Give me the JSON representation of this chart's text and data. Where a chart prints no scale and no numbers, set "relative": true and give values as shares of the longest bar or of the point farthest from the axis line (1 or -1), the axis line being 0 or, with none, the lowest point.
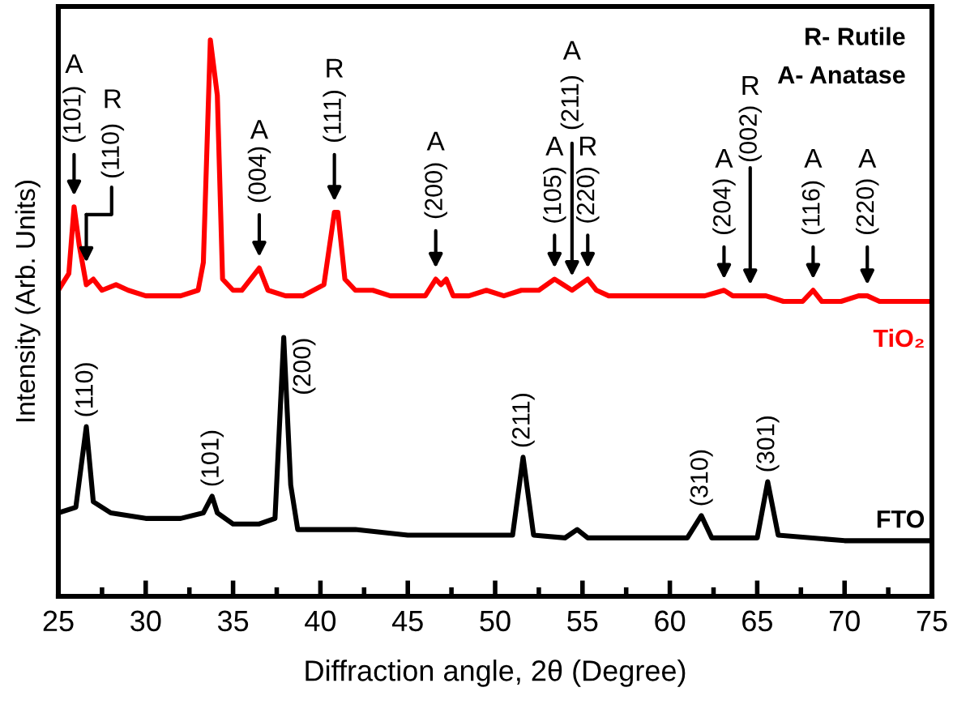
{
  "chart_data": {
    "type": "line",
    "relative": true,
    "xlabel": "Diffraction angle, 2θ (Degree)",
    "ylabel": "Intensity (Arb. Units)",
    "xlim": [
      25,
      75
    ],
    "xticks": [
      25,
      30,
      35,
      40,
      45,
      50,
      55,
      60,
      65,
      70,
      75
    ],
    "tick_labels": "x",
    "line_style": "solid",
    "series": [
      {
        "name": "TiO₂",
        "color": "#ff0000",
        "x": [
          25.0,
          25.6,
          25.9,
          26.2,
          26.6,
          27.0,
          27.5,
          28.3,
          29,
          30,
          31,
          32,
          33.0,
          33.3,
          33.7,
          34.1,
          34.4,
          35,
          35.5,
          36.0,
          36.5,
          37.0,
          38,
          39,
          40.2,
          40.8,
          41.0,
          41.4,
          42,
          43,
          44,
          45,
          46,
          46.6,
          46.9,
          47.2,
          47.6,
          48.5,
          49.5,
          50.5,
          51.5,
          52.5,
          53.4,
          53.9,
          54.4,
          55.3,
          55.8,
          56.5,
          57,
          58,
          59,
          60,
          61,
          62,
          63.1,
          63.6,
          64.6,
          65.5,
          66.5,
          67.6,
          68.2,
          68.7,
          69.8,
          70.8,
          71.3,
          72,
          73,
          74,
          75
        ],
        "values": [
          0.55,
          0.58,
          0.7,
          0.63,
          0.56,
          0.57,
          0.55,
          0.56,
          0.55,
          0.54,
          0.54,
          0.54,
          0.55,
          0.6,
          1.0,
          0.9,
          0.57,
          0.55,
          0.55,
          0.57,
          0.59,
          0.55,
          0.54,
          0.54,
          0.56,
          0.69,
          0.69,
          0.57,
          0.55,
          0.55,
          0.54,
          0.54,
          0.54,
          0.57,
          0.56,
          0.57,
          0.54,
          0.54,
          0.55,
          0.54,
          0.55,
          0.55,
          0.57,
          0.56,
          0.55,
          0.57,
          0.55,
          0.54,
          0.54,
          0.54,
          0.54,
          0.54,
          0.54,
          0.54,
          0.55,
          0.54,
          0.54,
          0.54,
          0.53,
          0.53,
          0.55,
          0.53,
          0.53,
          0.54,
          0.54,
          0.53,
          0.53,
          0.53,
          0.53
        ]
      },
      {
        "name": "FTO",
        "color": "#000000",
        "x": [
          25.0,
          26.0,
          26.6,
          27.0,
          28,
          30,
          32,
          33.3,
          33.8,
          34.1,
          35,
          36.5,
          37.4,
          37.9,
          38.3,
          38.7,
          40,
          42,
          45,
          48,
          50,
          51.0,
          51.6,
          52.2,
          54.0,
          54.7,
          55.3,
          58,
          61.0,
          61.8,
          62.4,
          65.0,
          65.6,
          66.2,
          70,
          75
        ],
        "values": [
          0.15,
          0.16,
          0.305,
          0.17,
          0.15,
          0.14,
          0.14,
          0.15,
          0.18,
          0.15,
          0.13,
          0.13,
          0.14,
          0.465,
          0.2,
          0.12,
          0.12,
          0.12,
          0.11,
          0.11,
          0.11,
          0.11,
          0.25,
          0.11,
          0.105,
          0.12,
          0.105,
          0.105,
          0.105,
          0.145,
          0.105,
          0.105,
          0.206,
          0.11,
          0.1,
          0.1
        ]
      }
    ],
    "annotations": [
      "R- Rutile",
      "A- Anatase",
      "A",
      {
        "text": "(101)",
        "x": 25.9,
        "y": 0.7
      },
      "R",
      "(110)",
      "A",
      {
        "text": "(004)",
        "x": 36.5,
        "y": 0.59
      },
      "R",
      {
        "text": "(111)",
        "x": 40.8,
        "y": 0.69
      },
      "A",
      {
        "text": "(200)",
        "x": 46.6,
        "y": 0.57
      },
      "A",
      {
        "text": "(105)",
        "x": 53.4,
        "y": 0.57
      },
      "A",
      "(211)",
      "R",
      {
        "text": "(220)",
        "x": 55.3,
        "y": 0.57
      },
      "A",
      {
        "text": "(204)",
        "x": 63.1,
        "y": 0.55
      },
      "R",
      "(002)",
      "A",
      {
        "text": "(116)",
        "x": 68.2,
        "y": 0.55
      },
      "A",
      {
        "text": "(220)",
        "x": 71.3,
        "y": 0.54
      },
      {
        "text": "(110)",
        "x": 26.6,
        "y": 0.305
      },
      {
        "text": "(101)",
        "x": 33.8,
        "y": 0.18
      },
      {
        "text": "(200)",
        "x": 37.9,
        "y": 0.465
      },
      {
        "text": "(211)",
        "x": 51.6,
        "y": 0.25
      },
      {
        "text": "(310)",
        "x": 61.8,
        "y": 0.145
      },
      {
        "text": "(301)",
        "x": 65.6,
        "y": 0.206
      }
    ]
  }
}
